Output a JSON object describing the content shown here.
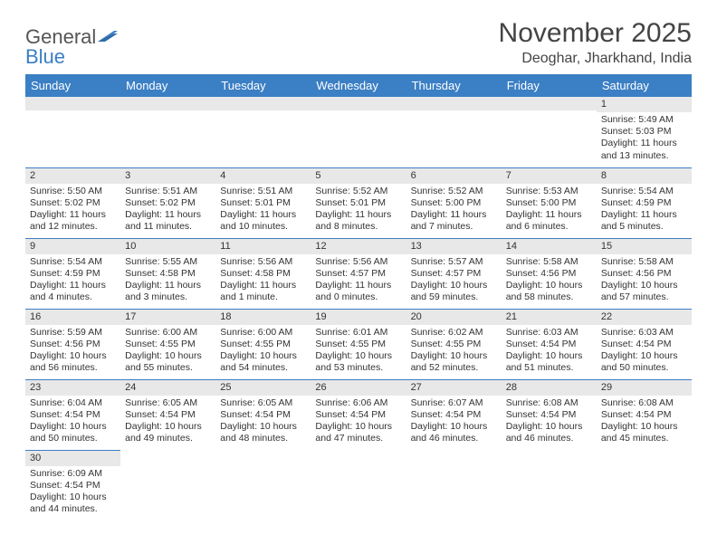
{
  "logo": {
    "general": "General",
    "blue": "Blue"
  },
  "title": "November 2025",
  "location": "Deoghar, Jharkhand, India",
  "colors": {
    "header_bg": "#3b7fc4",
    "daynum_bg": "#e8e8e8",
    "border": "#3b7fc4",
    "text": "#333333"
  },
  "day_headers": [
    "Sunday",
    "Monday",
    "Tuesday",
    "Wednesday",
    "Thursday",
    "Friday",
    "Saturday"
  ],
  "weeks": [
    [
      {
        "blank": true
      },
      {
        "blank": true
      },
      {
        "blank": true
      },
      {
        "blank": true
      },
      {
        "blank": true
      },
      {
        "blank": true
      },
      {
        "day": "1",
        "sunrise": "Sunrise: 5:49 AM",
        "sunset": "Sunset: 5:03 PM",
        "daylight": "Daylight: 11 hours and 13 minutes."
      }
    ],
    [
      {
        "day": "2",
        "sunrise": "Sunrise: 5:50 AM",
        "sunset": "Sunset: 5:02 PM",
        "daylight": "Daylight: 11 hours and 12 minutes."
      },
      {
        "day": "3",
        "sunrise": "Sunrise: 5:51 AM",
        "sunset": "Sunset: 5:02 PM",
        "daylight": "Daylight: 11 hours and 11 minutes."
      },
      {
        "day": "4",
        "sunrise": "Sunrise: 5:51 AM",
        "sunset": "Sunset: 5:01 PM",
        "daylight": "Daylight: 11 hours and 10 minutes."
      },
      {
        "day": "5",
        "sunrise": "Sunrise: 5:52 AM",
        "sunset": "Sunset: 5:01 PM",
        "daylight": "Daylight: 11 hours and 8 minutes."
      },
      {
        "day": "6",
        "sunrise": "Sunrise: 5:52 AM",
        "sunset": "Sunset: 5:00 PM",
        "daylight": "Daylight: 11 hours and 7 minutes."
      },
      {
        "day": "7",
        "sunrise": "Sunrise: 5:53 AM",
        "sunset": "Sunset: 5:00 PM",
        "daylight": "Daylight: 11 hours and 6 minutes."
      },
      {
        "day": "8",
        "sunrise": "Sunrise: 5:54 AM",
        "sunset": "Sunset: 4:59 PM",
        "daylight": "Daylight: 11 hours and 5 minutes."
      }
    ],
    [
      {
        "day": "9",
        "sunrise": "Sunrise: 5:54 AM",
        "sunset": "Sunset: 4:59 PM",
        "daylight": "Daylight: 11 hours and 4 minutes."
      },
      {
        "day": "10",
        "sunrise": "Sunrise: 5:55 AM",
        "sunset": "Sunset: 4:58 PM",
        "daylight": "Daylight: 11 hours and 3 minutes."
      },
      {
        "day": "11",
        "sunrise": "Sunrise: 5:56 AM",
        "sunset": "Sunset: 4:58 PM",
        "daylight": "Daylight: 11 hours and 1 minute."
      },
      {
        "day": "12",
        "sunrise": "Sunrise: 5:56 AM",
        "sunset": "Sunset: 4:57 PM",
        "daylight": "Daylight: 11 hours and 0 minutes."
      },
      {
        "day": "13",
        "sunrise": "Sunrise: 5:57 AM",
        "sunset": "Sunset: 4:57 PM",
        "daylight": "Daylight: 10 hours and 59 minutes."
      },
      {
        "day": "14",
        "sunrise": "Sunrise: 5:58 AM",
        "sunset": "Sunset: 4:56 PM",
        "daylight": "Daylight: 10 hours and 58 minutes."
      },
      {
        "day": "15",
        "sunrise": "Sunrise: 5:58 AM",
        "sunset": "Sunset: 4:56 PM",
        "daylight": "Daylight: 10 hours and 57 minutes."
      }
    ],
    [
      {
        "day": "16",
        "sunrise": "Sunrise: 5:59 AM",
        "sunset": "Sunset: 4:56 PM",
        "daylight": "Daylight: 10 hours and 56 minutes."
      },
      {
        "day": "17",
        "sunrise": "Sunrise: 6:00 AM",
        "sunset": "Sunset: 4:55 PM",
        "daylight": "Daylight: 10 hours and 55 minutes."
      },
      {
        "day": "18",
        "sunrise": "Sunrise: 6:00 AM",
        "sunset": "Sunset: 4:55 PM",
        "daylight": "Daylight: 10 hours and 54 minutes."
      },
      {
        "day": "19",
        "sunrise": "Sunrise: 6:01 AM",
        "sunset": "Sunset: 4:55 PM",
        "daylight": "Daylight: 10 hours and 53 minutes."
      },
      {
        "day": "20",
        "sunrise": "Sunrise: 6:02 AM",
        "sunset": "Sunset: 4:55 PM",
        "daylight": "Daylight: 10 hours and 52 minutes."
      },
      {
        "day": "21",
        "sunrise": "Sunrise: 6:03 AM",
        "sunset": "Sunset: 4:54 PM",
        "daylight": "Daylight: 10 hours and 51 minutes."
      },
      {
        "day": "22",
        "sunrise": "Sunrise: 6:03 AM",
        "sunset": "Sunset: 4:54 PM",
        "daylight": "Daylight: 10 hours and 50 minutes."
      }
    ],
    [
      {
        "day": "23",
        "sunrise": "Sunrise: 6:04 AM",
        "sunset": "Sunset: 4:54 PM",
        "daylight": "Daylight: 10 hours and 50 minutes."
      },
      {
        "day": "24",
        "sunrise": "Sunrise: 6:05 AM",
        "sunset": "Sunset: 4:54 PM",
        "daylight": "Daylight: 10 hours and 49 minutes."
      },
      {
        "day": "25",
        "sunrise": "Sunrise: 6:05 AM",
        "sunset": "Sunset: 4:54 PM",
        "daylight": "Daylight: 10 hours and 48 minutes."
      },
      {
        "day": "26",
        "sunrise": "Sunrise: 6:06 AM",
        "sunset": "Sunset: 4:54 PM",
        "daylight": "Daylight: 10 hours and 47 minutes."
      },
      {
        "day": "27",
        "sunrise": "Sunrise: 6:07 AM",
        "sunset": "Sunset: 4:54 PM",
        "daylight": "Daylight: 10 hours and 46 minutes."
      },
      {
        "day": "28",
        "sunrise": "Sunrise: 6:08 AM",
        "sunset": "Sunset: 4:54 PM",
        "daylight": "Daylight: 10 hours and 46 minutes."
      },
      {
        "day": "29",
        "sunrise": "Sunrise: 6:08 AM",
        "sunset": "Sunset: 4:54 PM",
        "daylight": "Daylight: 10 hours and 45 minutes."
      }
    ],
    [
      {
        "day": "30",
        "sunrise": "Sunrise: 6:09 AM",
        "sunset": "Sunset: 4:54 PM",
        "daylight": "Daylight: 10 hours and 44 minutes."
      },
      {
        "blank": true
      },
      {
        "blank": true
      },
      {
        "blank": true
      },
      {
        "blank": true
      },
      {
        "blank": true
      },
      {
        "blank": true
      }
    ]
  ]
}
